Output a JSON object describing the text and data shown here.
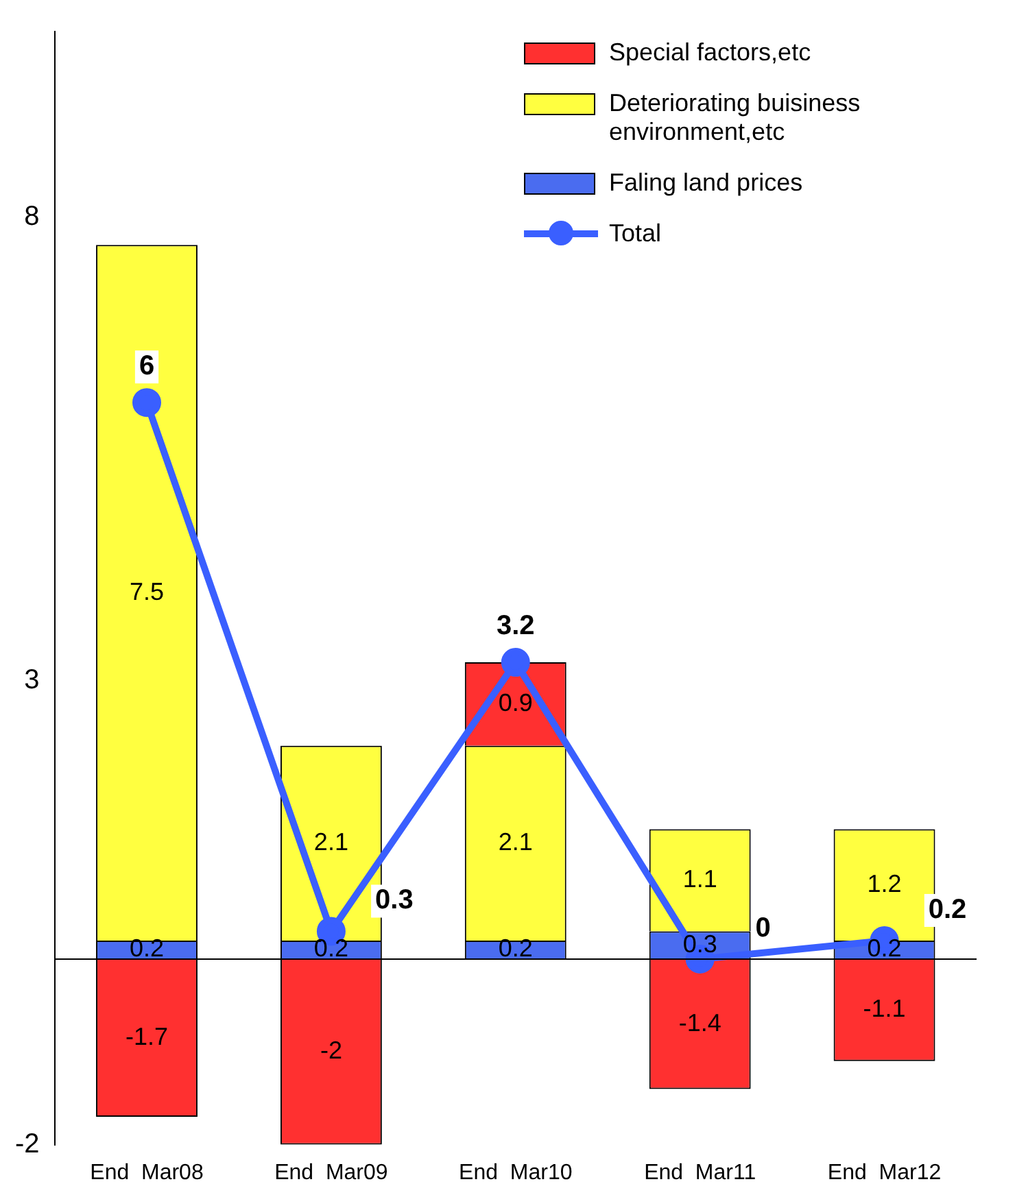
{
  "chart_data": {
    "type": "bar",
    "stacked": true,
    "categories": [
      "End  Mar08",
      "End  Mar09",
      "End  Mar10",
      "End  Mar11",
      "End  Mar12"
    ],
    "series": [
      {
        "name": "Faling land prices",
        "color": "#4a6cf0",
        "values": [
          0.2,
          0.2,
          0.2,
          0.3,
          0.2
        ]
      },
      {
        "name": "Deteriorating buisiness environment,etc",
        "color": "#ffff40",
        "values": [
          7.5,
          2.1,
          2.1,
          1.1,
          1.2
        ]
      },
      {
        "name": "Special factors,etc",
        "color": "#ff3030",
        "values": [
          -1.7,
          -2,
          0.9,
          -1.4,
          -1.1
        ]
      },
      {
        "name": "Total",
        "type": "line",
        "color": "#3a5fff",
        "marker": "circle",
        "values": [
          6,
          0.3,
          3.2,
          0,
          0.2
        ]
      }
    ],
    "ylim": [
      -2,
      10
    ],
    "yticks": [
      -2,
      3,
      8
    ],
    "grid": false,
    "legend": "top right",
    "data_labels": true
  }
}
